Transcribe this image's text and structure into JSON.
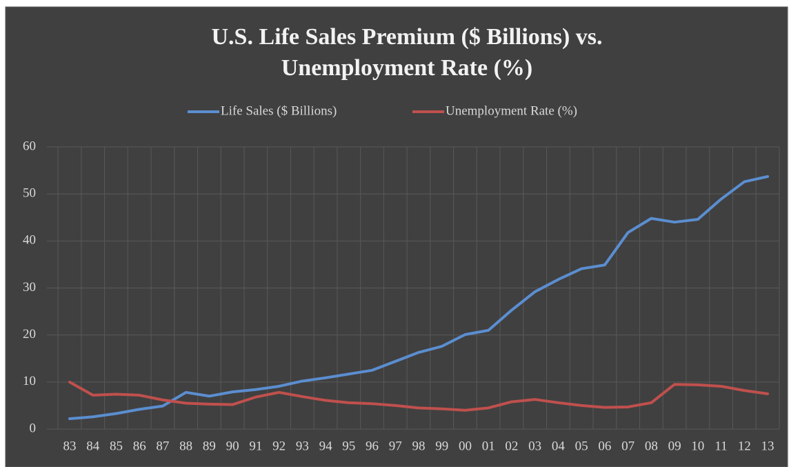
{
  "chart_data": {
    "type": "line",
    "title": [
      "U.S. Life Sales Premium ($ Billions) vs.",
      "Unemployment Rate (%)"
    ],
    "categories": [
      "83",
      "84",
      "85",
      "86",
      "87",
      "88",
      "89",
      "90",
      "91",
      "92",
      "93",
      "94",
      "95",
      "96",
      "97",
      "98",
      "99",
      "00",
      "01",
      "02",
      "03",
      "04",
      "05",
      "06",
      "07",
      "08",
      "09",
      "10",
      "11",
      "12",
      "13"
    ],
    "series": [
      {
        "name": "Life Sales ($ Billions)",
        "color": "#5b8ed0",
        "values": [
          2.2,
          2.6,
          3.3,
          4.2,
          4.9,
          7.8,
          7.0,
          7.9,
          8.4,
          9.1,
          10.2,
          10.9,
          11.7,
          12.5,
          14.4,
          16.3,
          17.6,
          20.1,
          21.0,
          25.3,
          29.2,
          31.8,
          34.1,
          34.9,
          41.8,
          44.8,
          44.0,
          44.6,
          48.9,
          52.6,
          53.7
        ]
      },
      {
        "name": "Unemployment Rate (%)",
        "color": "#c0504d",
        "values": [
          10.0,
          7.2,
          7.4,
          7.2,
          6.2,
          5.5,
          5.3,
          5.2,
          6.8,
          7.8,
          6.9,
          6.1,
          5.6,
          5.4,
          5.0,
          4.5,
          4.3,
          4.0,
          4.5,
          5.8,
          6.3,
          5.6,
          5.0,
          4.6,
          4.7,
          5.6,
          9.5,
          9.4,
          9.1,
          8.2,
          7.5
        ]
      }
    ],
    "ylim": [
      0,
      60
    ],
    "yticks": [
      0,
      10,
      20,
      30,
      40,
      50,
      60
    ],
    "grid": true,
    "legend": "top"
  }
}
